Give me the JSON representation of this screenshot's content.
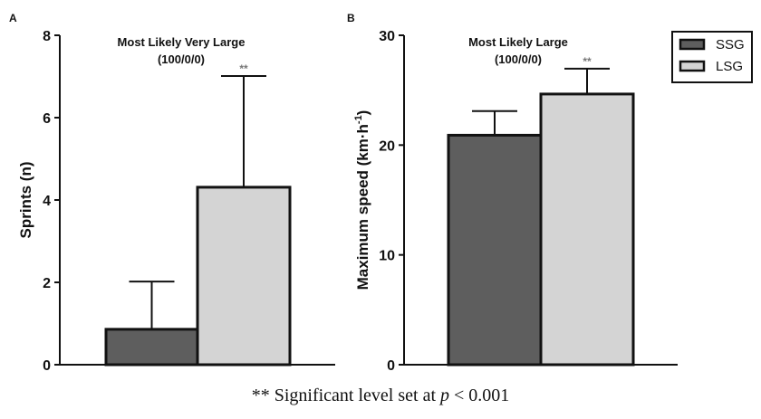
{
  "chart_data": [
    {
      "type": "bar",
      "panel": "A",
      "title": "Most Likely Very Large",
      "subtitle": "(100/0/0)",
      "xlabel": "",
      "ylabel": "Sprints (n)",
      "ylim": [
        0,
        8
      ],
      "yticks": [
        0,
        2,
        4,
        6,
        8
      ],
      "categories": [
        "SSG",
        "LSG"
      ],
      "values": [
        0.86,
        4.31
      ],
      "errors_upper": [
        2.02,
        7.01
      ],
      "annotations": [
        {
          "category": "LSG",
          "text": "**"
        }
      ]
    },
    {
      "type": "bar",
      "panel": "B",
      "title": "Most Likely Large",
      "subtitle": "(100/0/0)",
      "xlabel": "",
      "ylabel": "Maximum speed (km·h",
      "ylabel_sup": "-1",
      "ylabel_end": ")",
      "ylim": [
        0,
        30
      ],
      "yticks": [
        0,
        10,
        20,
        30
      ],
      "categories": [
        "SSG",
        "LSG"
      ],
      "values": [
        20.9,
        24.65
      ],
      "errors_upper": [
        23.1,
        26.96
      ],
      "annotations": [
        {
          "category": "LSG",
          "text": "**"
        }
      ]
    }
  ],
  "legend": {
    "placement": "top-right",
    "items": [
      {
        "label": "SSG",
        "color": "#5e5e5e"
      },
      {
        "label": "LSG",
        "color": "#d4d4d4"
      }
    ]
  },
  "caption": {
    "prefix": "** Significant level set at ",
    "italic": "p",
    "suffix": " < 0.001"
  }
}
